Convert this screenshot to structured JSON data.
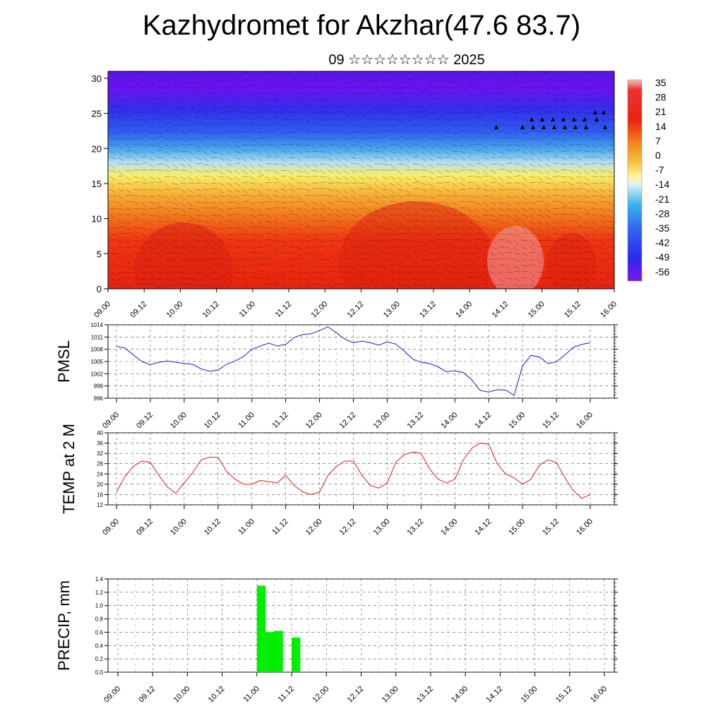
{
  "page": {
    "title": "Kazhydromet for Akzhar(47.6 83.7)",
    "subtitle": "09 ☆☆☆☆☆☆☆☆ 2025"
  },
  "chart_data": [
    {
      "type": "heatmap",
      "description_variable": "temperature cross-section with wind barbs",
      "x_tick_labels": [
        "09.00",
        "09.12",
        "10.00",
        "10.12",
        "11.00",
        "11.12",
        "12.00",
        "12.12",
        "13.00",
        "13.12",
        "14.00",
        "14.12",
        "15.00",
        "15.12",
        "16.00"
      ],
      "y_tick_labels": [
        "0",
        "5",
        "10",
        "15",
        "20",
        "25",
        "30"
      ],
      "ylim": [
        0,
        31
      ],
      "colorbar_labels": [
        "35",
        "28",
        "21",
        "14",
        "7",
        "0",
        "-7",
        "-14",
        "-21",
        "-28",
        "-35",
        "-42",
        "-49",
        "-56"
      ],
      "colors": {
        "cold": "#6a10f0",
        "cool": "#2f64f2",
        "mild": "#f4eb5e",
        "warm": "#f39a1f",
        "hot": "#e5240e"
      }
    },
    {
      "type": "line",
      "ylabel": "PMSL",
      "x_tick_labels": [
        "09.00",
        "09.12",
        "10.00",
        "10.12",
        "11.00",
        "11.12",
        "12.00",
        "12.12",
        "13.00",
        "13.12",
        "14.00",
        "14.12",
        "15.00",
        "15.12",
        "16.00"
      ],
      "y_tick_labels": [
        "1014",
        "1011",
        "1008",
        "1005",
        "1002",
        "999",
        "996"
      ],
      "ylim": [
        996,
        1014
      ],
      "color": "#1a1acc",
      "series": [
        {
          "values": [
            1008.7,
            1008.3,
            1006.6,
            1005.0,
            1004.2,
            1004.8,
            1005.1,
            1004.8,
            1004.5,
            1004.3,
            1003.2,
            1002.6,
            1002.9,
            1004.3,
            1005.1,
            1006.2,
            1008.0,
            1008.8,
            1009.5,
            1008.8,
            1009.2,
            1010.9,
            1011.6,
            1011.8,
            1012.6,
            1013.5,
            1012.0,
            1010.5,
            1009.6,
            1010.0,
            1009.6,
            1009.0,
            1009.8,
            1009.3,
            1007.6,
            1005.6,
            1004.8,
            1004.5,
            1003.7,
            1002.5,
            1002.7,
            1002.3,
            1000.5,
            997.9,
            997.5,
            998.1,
            998.0,
            996.7,
            1004.0,
            1006.5,
            1006.1,
            1004.5,
            1004.9,
            1006.6,
            1008.5,
            1009.2,
            1009.6
          ]
        }
      ]
    },
    {
      "type": "line",
      "ylabel": "TEMP at 2 M",
      "x_tick_labels": [
        "09.00",
        "09.12",
        "10.00",
        "10.12",
        "11.00",
        "11.12",
        "12.00",
        "12.12",
        "13.00",
        "13.12",
        "14.00",
        "14.12",
        "15.00",
        "15.12",
        "16.00"
      ],
      "y_tick_labels": [
        "12",
        "16",
        "20",
        "24",
        "28",
        "32",
        "36",
        "40"
      ],
      "ylim": [
        12,
        40
      ],
      "color": "#dd1c1c",
      "series": [
        {
          "values": [
            17.0,
            23.0,
            27.0,
            29.0,
            28.5,
            23.5,
            19.0,
            16.5,
            20.5,
            24.5,
            29.5,
            30.5,
            30.5,
            25.0,
            22.0,
            20.0,
            20.0,
            21.5,
            21.0,
            20.5,
            23.5,
            19.5,
            17.0,
            16.0,
            17.0,
            23.5,
            27.0,
            29.0,
            29.0,
            23.5,
            19.5,
            18.5,
            20.5,
            28.5,
            31.5,
            32.5,
            32.0,
            26.0,
            22.0,
            20.5,
            22.0,
            29.5,
            34.0,
            36.0,
            35.5,
            28.0,
            24.0,
            22.5,
            20.0,
            22.0,
            27.5,
            29.5,
            28.5,
            22.5,
            17.5,
            14.5,
            16.0
          ]
        }
      ]
    },
    {
      "type": "bar",
      "ylabel": "PRECIP, mm",
      "x_tick_labels": [
        "09.00",
        "09.12",
        "10.00",
        "10.12",
        "11.00",
        "11.12",
        "12.00",
        "12.12",
        "13.00",
        "13.12",
        "14.00",
        "14.12",
        "15.00",
        "15.12",
        "16.00"
      ],
      "y_tick_labels": [
        "0.0",
        "0.2",
        "0.4",
        "0.6",
        "0.8",
        "1.0",
        "1.2",
        "1.4"
      ],
      "ylim": [
        0,
        1.4
      ],
      "color": "#00ee00",
      "bars": [
        {
          "x_hours": 48,
          "value": 1.3
        },
        {
          "x_hours": 51,
          "value": 0.6
        },
        {
          "x_hours": 54,
          "value": 0.62
        },
        {
          "x_hours": 60,
          "value": 0.52
        }
      ]
    }
  ]
}
